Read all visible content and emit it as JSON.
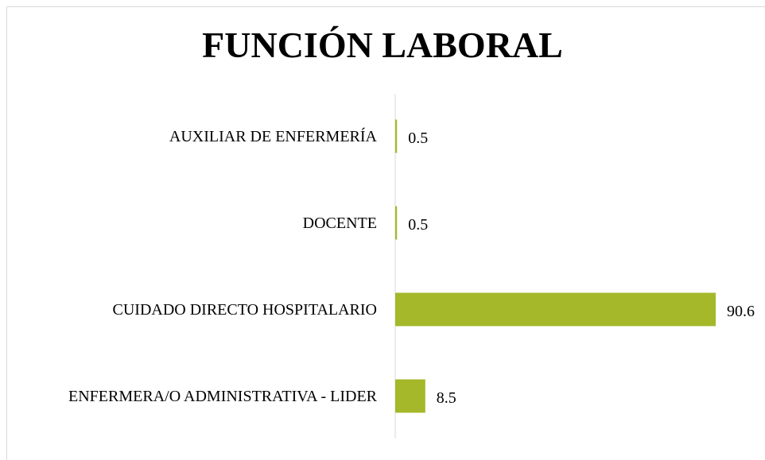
{
  "chart_data": {
    "type": "bar",
    "orientation": "horizontal",
    "title": "FUNCIÓN LABORAL",
    "categories": [
      "AUXILIAR DE ENFERMERÍA",
      "DOCENTE",
      "CUIDADO DIRECTO HOSPITALARIO",
      "ENFERMERA/O ADMINISTRATIVA - LIDER"
    ],
    "values": [
      0.5,
      0.5,
      90.6,
      8.5
    ],
    "color": "#a4b82a"
  }
}
